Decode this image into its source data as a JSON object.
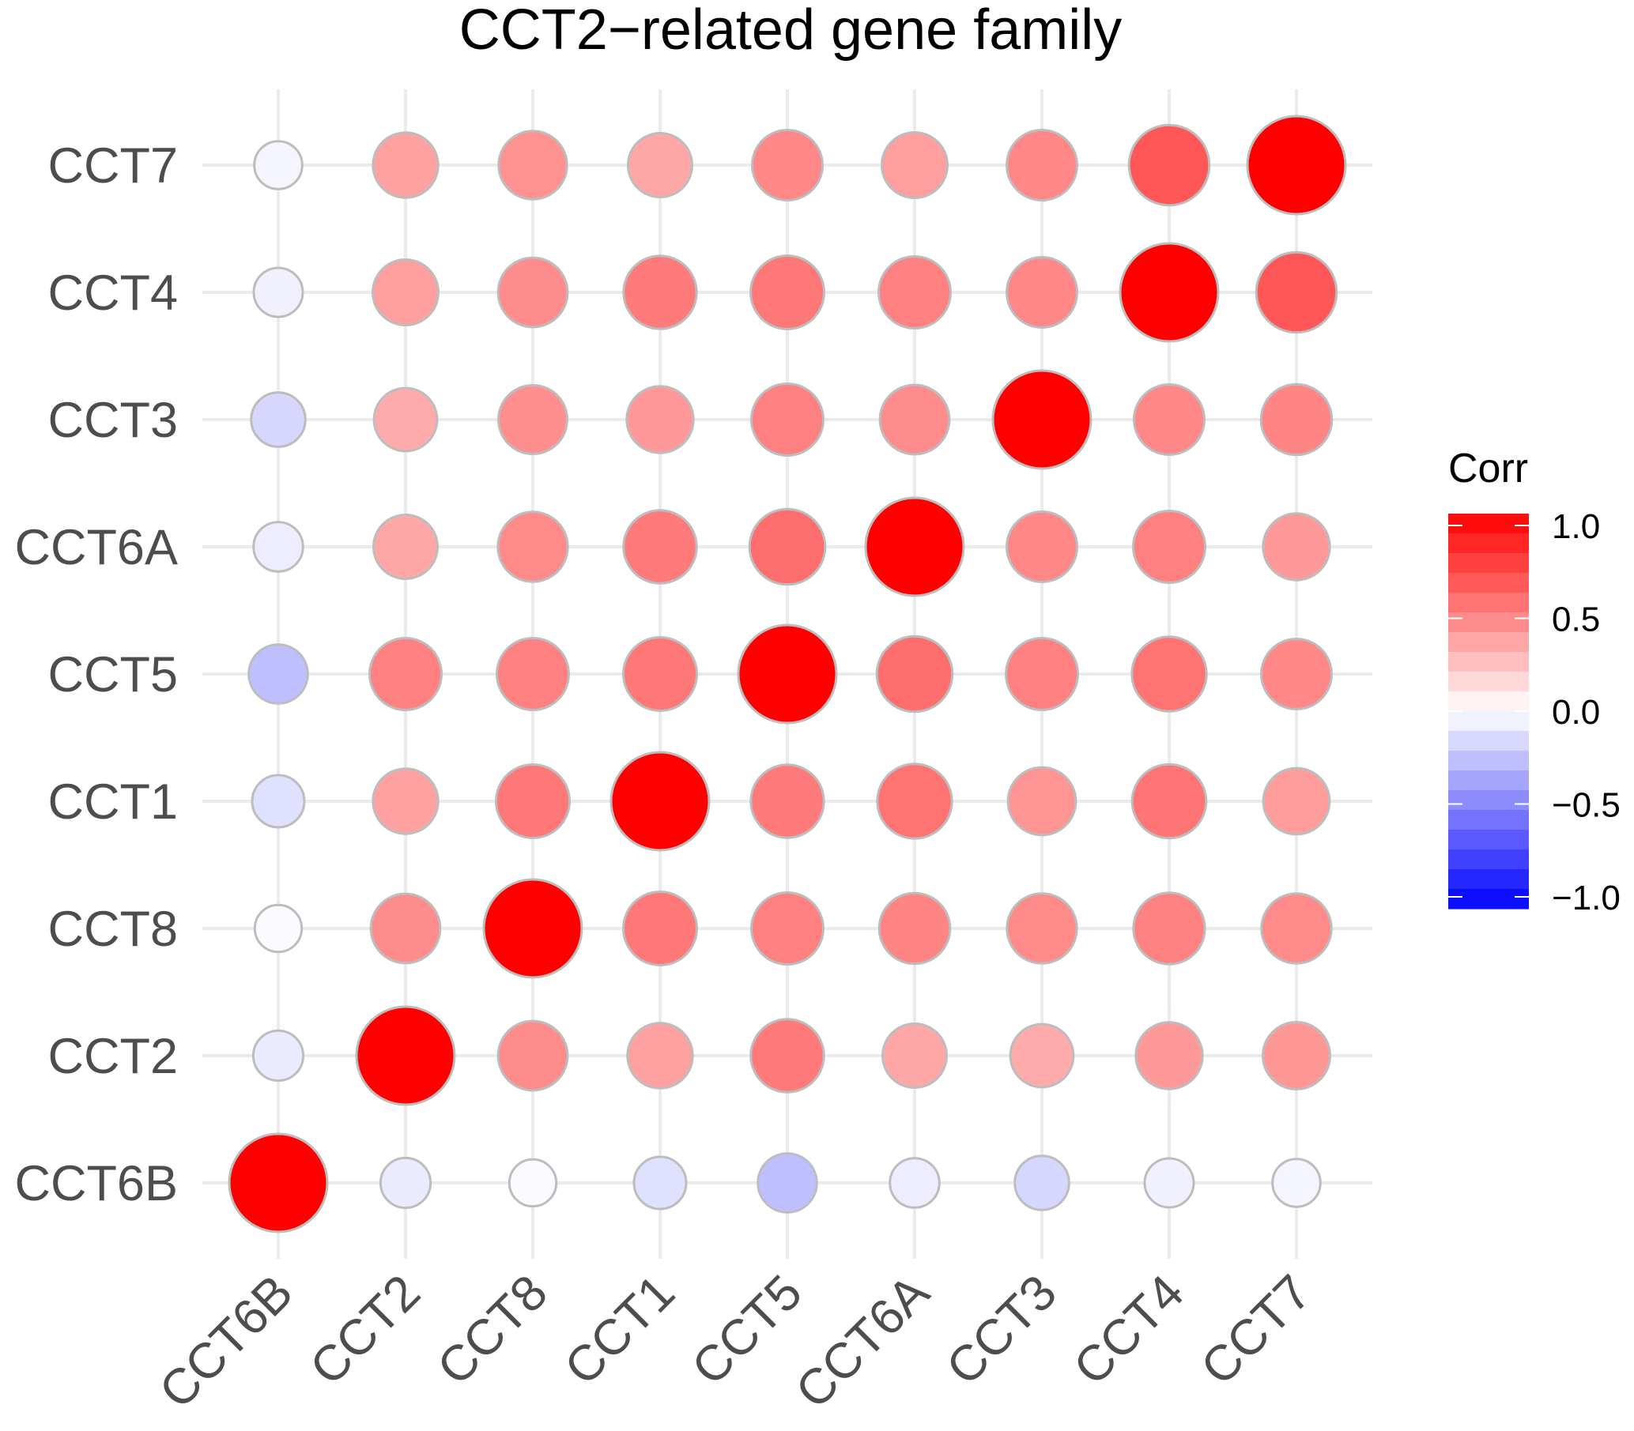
{
  "chart_data": {
    "type": "heatmap",
    "subtype": "circle-correlation-matrix",
    "title": "CCT2−related gene family",
    "x_categories": [
      "CCT6B",
      "CCT2",
      "CCT8",
      "CCT1",
      "CCT5",
      "CCT6A",
      "CCT3",
      "CCT4",
      "CCT7"
    ],
    "y_categories": [
      "CCT6B",
      "CCT2",
      "CCT8",
      "CCT1",
      "CCT5",
      "CCT6A",
      "CCT3",
      "CCT4",
      "CCT7"
    ],
    "matrix": [
      [
        1.0,
        -0.08,
        -0.02,
        -0.12,
        -0.25,
        -0.07,
        -0.16,
        -0.06,
        -0.04
      ],
      [
        -0.08,
        1.0,
        0.45,
        0.37,
        0.52,
        0.35,
        0.33,
        0.4,
        0.41
      ],
      [
        -0.02,
        0.45,
        1.0,
        0.53,
        0.5,
        0.48,
        0.46,
        0.49,
        0.46
      ],
      [
        -0.12,
        0.37,
        0.53,
        1.0,
        0.52,
        0.55,
        0.42,
        0.54,
        0.39
      ],
      [
        -0.25,
        0.5,
        0.5,
        0.53,
        1.0,
        0.57,
        0.5,
        0.55,
        0.47
      ],
      [
        -0.07,
        0.35,
        0.46,
        0.52,
        0.57,
        1.0,
        0.47,
        0.5,
        0.4
      ],
      [
        -0.16,
        0.33,
        0.44,
        0.4,
        0.5,
        0.45,
        1.0,
        0.47,
        0.48
      ],
      [
        -0.06,
        0.38,
        0.45,
        0.52,
        0.53,
        0.5,
        0.47,
        1.0,
        0.66
      ],
      [
        -0.04,
        0.37,
        0.43,
        0.35,
        0.47,
        0.38,
        0.47,
        0.66,
        1.0
      ]
    ],
    "value_encoding": "circle size and color = correlation",
    "legend": {
      "title": "Corr",
      "ticks": [
        "1.0",
        "0.5",
        "0.0",
        "−0.5",
        "−1.0"
      ],
      "tick_values": [
        1.0,
        0.5,
        0.0,
        -0.5,
        -1.0
      ],
      "range": [
        -1.0,
        1.0
      ],
      "colors": {
        "low": "#0000ff",
        "mid": "#ffffff",
        "high": "#ff0000"
      },
      "placement": "right"
    },
    "grid": true
  }
}
